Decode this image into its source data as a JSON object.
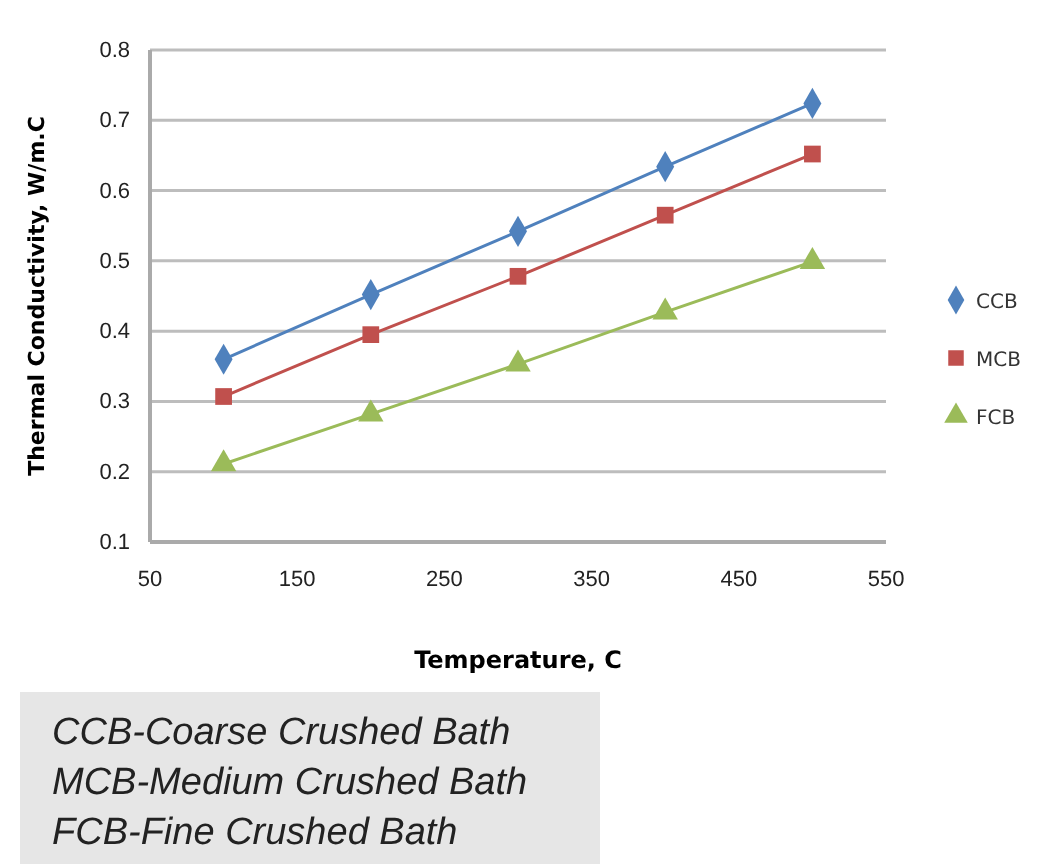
{
  "chart_data": {
    "type": "line",
    "xlabel": "Temperature, C",
    "ylabel": "Thermal Conductivity, W/m.C",
    "x": [
      100,
      200,
      300,
      400,
      500
    ],
    "series": [
      {
        "name": "CCB",
        "color": "#4f81bd",
        "marker": "diamond",
        "values": [
          0.36,
          0.452,
          0.542,
          0.634,
          0.724
        ]
      },
      {
        "name": "MCB",
        "color": "#c0504d",
        "marker": "square",
        "values": [
          0.307,
          0.395,
          0.478,
          0.565,
          0.652
        ]
      },
      {
        "name": "FCB",
        "color": "#9bbb59",
        "marker": "triangle",
        "values": [
          0.211,
          0.282,
          0.353,
          0.427,
          0.499
        ]
      }
    ],
    "xlim": [
      50,
      550
    ],
    "xticks": [
      50,
      150,
      250,
      350,
      450,
      550
    ],
    "ylim": [
      0.1,
      0.8
    ],
    "yticks": [
      0.1,
      0.2,
      0.3,
      0.4,
      0.5,
      0.6,
      0.7,
      0.8
    ],
    "grid": "y",
    "legend": "right",
    "annotations": [
      "CCB-Coarse Crushed Bath",
      "MCB-Medium Crushed Bath",
      "FCB-Fine Crushed Bath"
    ]
  }
}
